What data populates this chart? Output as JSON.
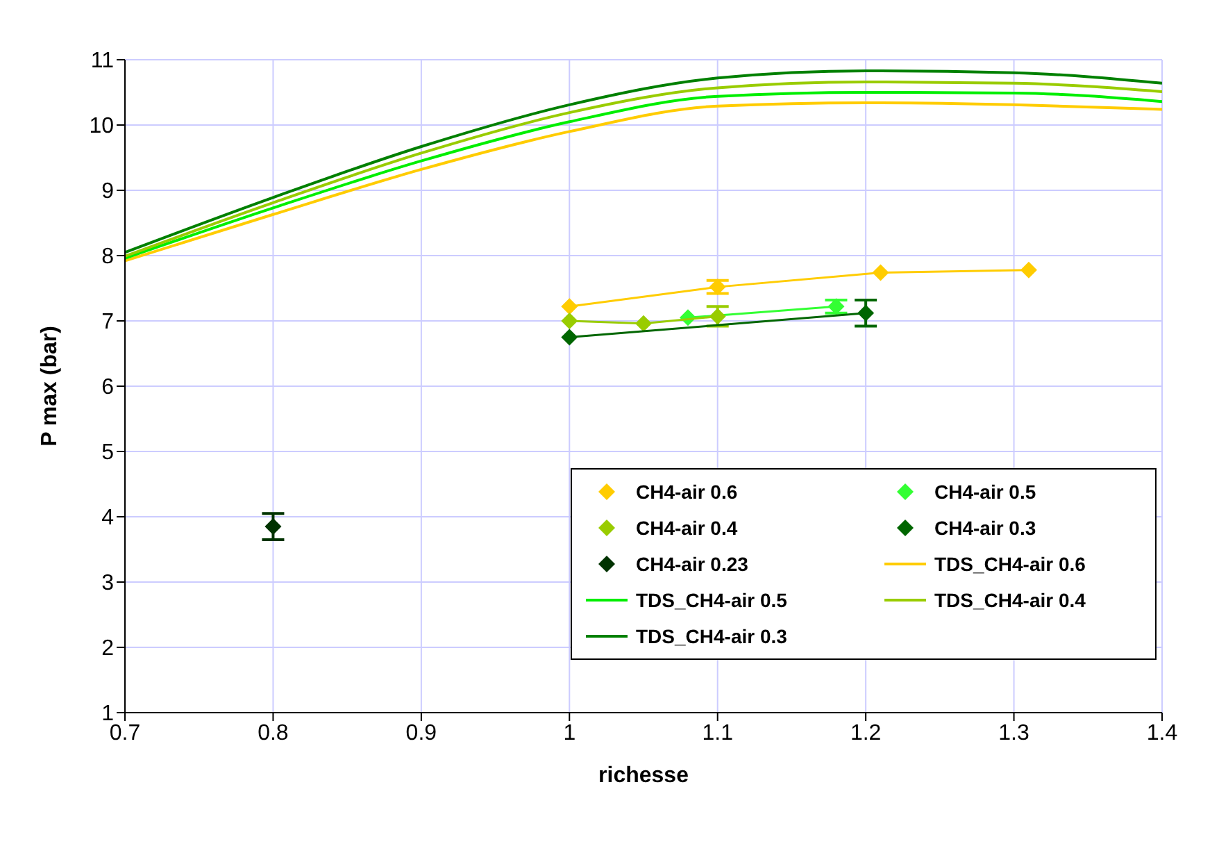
{
  "chart_data": {
    "type": "line",
    "xlabel": "richesse",
    "ylabel": "P max (bar)",
    "xlim": [
      0.7,
      1.4
    ],
    "xticks": [
      0.7,
      0.8,
      0.9,
      1,
      1.1,
      1.2,
      1.3,
      1.4
    ],
    "ylim": [
      1,
      11
    ],
    "yticks": [
      1,
      2,
      3,
      4,
      5,
      6,
      7,
      8,
      9,
      10,
      11
    ],
    "grid": true,
    "legend": "bottom right",
    "marker": "diamond",
    "series": [
      {
        "name": "CH4-air 0.6",
        "color": "#ffcc00",
        "x": [
          1.0,
          1.1,
          1.21,
          1.31
        ],
        "values": [
          7.22,
          7.52,
          7.74,
          7.78
        ],
        "errors": [
          null,
          0.1,
          null,
          null
        ]
      },
      {
        "name": "CH4-air 0.5",
        "color": "#33ff33",
        "x": [
          1.08,
          1.18
        ],
        "values": [
          7.05,
          7.22
        ],
        "errors": [
          null,
          0.1
        ]
      },
      {
        "name": "CH4-air 0.4",
        "color": "#99cc00",
        "x": [
          1.0,
          1.05,
          1.1
        ],
        "values": [
          7.0,
          6.96,
          7.07
        ],
        "errors": [
          null,
          null,
          0.15
        ]
      },
      {
        "name": "CH4-air 0.3",
        "color": "#006600",
        "x": [
          1.0,
          1.2
        ],
        "values": [
          6.75,
          7.12
        ],
        "errors": [
          null,
          0.2
        ]
      },
      {
        "name": "CH4-air 0.23",
        "type": "scatter",
        "color": "#003300",
        "x": [
          0.8
        ],
        "values": [
          3.85
        ],
        "errors": [
          0.2
        ]
      },
      {
        "name": "TDS_CH4-air 0.6",
        "marker": "none",
        "color": "#ffcc00",
        "x": [
          0.7,
          0.8,
          0.9,
          1.0,
          1.1,
          1.2,
          1.3,
          1.4
        ],
        "values": [
          7.92,
          8.63,
          9.32,
          9.9,
          10.29,
          10.34,
          10.31,
          10.24
        ]
      },
      {
        "name": "TDS_CH4-air 0.5",
        "marker": "none",
        "color": "#00ee00",
        "x": [
          0.7,
          0.8,
          0.9,
          1.0,
          1.1,
          1.2,
          1.3,
          1.4
        ],
        "values": [
          7.96,
          8.73,
          9.45,
          10.05,
          10.44,
          10.5,
          10.49,
          10.36
        ]
      },
      {
        "name": "TDS_CH4-air 0.4",
        "marker": "none",
        "color": "#99cc00",
        "x": [
          0.7,
          0.8,
          0.9,
          1.0,
          1.1,
          1.2,
          1.3,
          1.4
        ],
        "values": [
          7.99,
          8.81,
          9.57,
          10.19,
          10.57,
          10.66,
          10.64,
          10.51
        ]
      },
      {
        "name": "TDS_CH4-air 0.3",
        "marker": "none",
        "color": "#008000",
        "x": [
          0.7,
          0.8,
          0.9,
          1.0,
          1.1,
          1.2,
          1.3,
          1.4
        ],
        "values": [
          8.05,
          8.89,
          9.67,
          10.31,
          10.72,
          10.83,
          10.8,
          10.64
        ]
      }
    ]
  }
}
